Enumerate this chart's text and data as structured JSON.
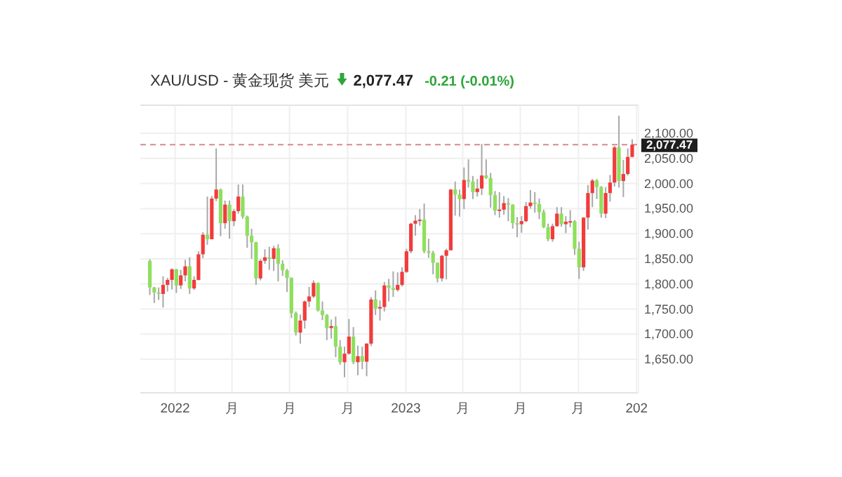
{
  "chart_data": {
    "type": "candlestick",
    "title": "XAU/USD - 黄金现货 美元",
    "annotations": [
      "2,077.47",
      "-0.21 (-0.01%)"
    ],
    "x": [
      "2021-11-22",
      "2021-11-29",
      "2021-12-06",
      "2021-12-13",
      "2021-12-20",
      "2021-12-27",
      "2022-01-03",
      "2022-01-10",
      "2022-01-17",
      "2022-01-24",
      "2022-01-31",
      "2022-02-07",
      "2022-02-14",
      "2022-02-21",
      "2022-02-28",
      "2022-03-07",
      "2022-03-14",
      "2022-03-21",
      "2022-03-28",
      "2022-04-04",
      "2022-04-11",
      "2022-04-18",
      "2022-04-25",
      "2022-05-02",
      "2022-05-09",
      "2022-05-16",
      "2022-05-23",
      "2022-05-30",
      "2022-06-06",
      "2022-06-13",
      "2022-06-20",
      "2022-06-27",
      "2022-07-04",
      "2022-07-11",
      "2022-07-18",
      "2022-07-25",
      "2022-08-01",
      "2022-08-08",
      "2022-08-15",
      "2022-08-22",
      "2022-08-29",
      "2022-09-05",
      "2022-09-12",
      "2022-09-19",
      "2022-09-26",
      "2022-10-03",
      "2022-10-10",
      "2022-10-17",
      "2022-10-24",
      "2022-10-31",
      "2022-11-07",
      "2022-11-14",
      "2022-11-21",
      "2022-11-28",
      "2022-12-05",
      "2022-12-12",
      "2022-12-19",
      "2022-12-26",
      "2023-01-02",
      "2023-01-09",
      "2023-01-16",
      "2023-01-23",
      "2023-01-30",
      "2023-02-06",
      "2023-02-13",
      "2023-02-20",
      "2023-02-27",
      "2023-03-06",
      "2023-03-13",
      "2023-03-20",
      "2023-03-27",
      "2023-04-03",
      "2023-04-10",
      "2023-04-17",
      "2023-04-24",
      "2023-05-01",
      "2023-05-08",
      "2023-05-15",
      "2023-05-22",
      "2023-05-29",
      "2023-06-05",
      "2023-06-12",
      "2023-06-19",
      "2023-06-26",
      "2023-07-03",
      "2023-07-10",
      "2023-07-17",
      "2023-07-24",
      "2023-07-31",
      "2023-08-07",
      "2023-08-14",
      "2023-08-21",
      "2023-08-28",
      "2023-09-04",
      "2023-09-11",
      "2023-09-18",
      "2023-09-25",
      "2023-10-02",
      "2023-10-09",
      "2023-10-16",
      "2023-10-23",
      "2023-10-30",
      "2023-11-06",
      "2023-11-13",
      "2023-11-20",
      "2023-11-27",
      "2023-12-04",
      "2023-12-11",
      "2023-12-18",
      "2023-12-25"
    ],
    "ohlc": [
      [
        1846,
        1849,
        1778,
        1793
      ],
      [
        1793,
        1794,
        1762,
        1783
      ],
      [
        1783,
        1793,
        1768,
        1780
      ],
      [
        1780,
        1815,
        1753,
        1798
      ],
      [
        1798,
        1812,
        1785,
        1808
      ],
      [
        1808,
        1831,
        1789,
        1829
      ],
      [
        1829,
        1830,
        1782,
        1797
      ],
      [
        1797,
        1828,
        1790,
        1817
      ],
      [
        1817,
        1848,
        1805,
        1835
      ],
      [
        1835,
        1853,
        1780,
        1791
      ],
      [
        1791,
        1815,
        1788,
        1808
      ],
      [
        1808,
        1865,
        1807,
        1859
      ],
      [
        1859,
        1903,
        1851,
        1898
      ],
      [
        1898,
        1974,
        1878,
        1889
      ],
      [
        1889,
        1975,
        1889,
        1970
      ],
      [
        1970,
        2070,
        1965,
        1988
      ],
      [
        1988,
        1990,
        1895,
        1921
      ],
      [
        1921,
        1966,
        1910,
        1958
      ],
      [
        1958,
        1966,
        1890,
        1925
      ],
      [
        1925,
        1949,
        1915,
        1945
      ],
      [
        1945,
        1998,
        1940,
        1974
      ],
      [
        1974,
        1998,
        1930,
        1934
      ],
      [
        1934,
        1936,
        1872,
        1896
      ],
      [
        1896,
        1910,
        1850,
        1883
      ],
      [
        1883,
        1884,
        1798,
        1811
      ],
      [
        1811,
        1849,
        1807,
        1846
      ],
      [
        1846,
        1869,
        1840,
        1853
      ],
      [
        1853,
        1874,
        1828,
        1850
      ],
      [
        1850,
        1876,
        1826,
        1871
      ],
      [
        1871,
        1879,
        1805,
        1840
      ],
      [
        1840,
        1847,
        1816,
        1827
      ],
      [
        1827,
        1830,
        1784,
        1812
      ],
      [
        1812,
        1813,
        1732,
        1742
      ],
      [
        1742,
        1745,
        1697,
        1703
      ],
      [
        1703,
        1739,
        1681,
        1727
      ],
      [
        1727,
        1767,
        1711,
        1765
      ],
      [
        1765,
        1794,
        1754,
        1775
      ],
      [
        1775,
        1807,
        1772,
        1802
      ],
      [
        1802,
        1803,
        1745,
        1747
      ],
      [
        1747,
        1765,
        1728,
        1738
      ],
      [
        1738,
        1740,
        1688,
        1712
      ],
      [
        1712,
        1729,
        1691,
        1716
      ],
      [
        1716,
        1735,
        1654,
        1675
      ],
      [
        1675,
        1688,
        1639,
        1644
      ],
      [
        1644,
        1675,
        1614,
        1661
      ],
      [
        1661,
        1730,
        1659,
        1695
      ],
      [
        1695,
        1714,
        1640,
        1644
      ],
      [
        1644,
        1677,
        1618,
        1656
      ],
      [
        1656,
        1675,
        1630,
        1645
      ],
      [
        1645,
        1682,
        1616,
        1681
      ],
      [
        1681,
        1774,
        1676,
        1769
      ],
      [
        1769,
        1787,
        1738,
        1751
      ],
      [
        1751,
        1767,
        1727,
        1754
      ],
      [
        1754,
        1804,
        1745,
        1797
      ],
      [
        1797,
        1810,
        1765,
        1792
      ],
      [
        1792,
        1825,
        1774,
        1788
      ],
      [
        1788,
        1823,
        1785,
        1798
      ],
      [
        1798,
        1833,
        1795,
        1824
      ],
      [
        1824,
        1870,
        1822,
        1865
      ],
      [
        1865,
        1922,
        1861,
        1920
      ],
      [
        1920,
        1937,
        1896,
        1926
      ],
      [
        1926,
        1949,
        1916,
        1928
      ],
      [
        1928,
        1960,
        1861,
        1865
      ],
      [
        1865,
        1890,
        1852,
        1862
      ],
      [
        1862,
        1866,
        1819,
        1842
      ],
      [
        1842,
        1843,
        1803,
        1811
      ],
      [
        1811,
        1858,
        1805,
        1856
      ],
      [
        1856,
        1870,
        1809,
        1867
      ],
      [
        1867,
        1989,
        1867,
        1988
      ],
      [
        1988,
        2004,
        1936,
        1978
      ],
      [
        1978,
        1988,
        1934,
        1969
      ],
      [
        1969,
        2032,
        1949,
        2007
      ],
      [
        2007,
        2048,
        1992,
        2004
      ],
      [
        2004,
        2015,
        1969,
        1983
      ],
      [
        1983,
        2009,
        1974,
        1990
      ],
      [
        1990,
        2079,
        1977,
        2016
      ],
      [
        2016,
        2048,
        2009,
        2011
      ],
      [
        2011,
        2021,
        1952,
        1977
      ],
      [
        1977,
        1985,
        1937,
        1946
      ],
      [
        1946,
        1983,
        1932,
        1948
      ],
      [
        1948,
        1975,
        1938,
        1961
      ],
      [
        1961,
        1971,
        1925,
        1958
      ],
      [
        1958,
        1959,
        1910,
        1921
      ],
      [
        1921,
        1933,
        1893,
        1919
      ],
      [
        1919,
        1935,
        1902,
        1925
      ],
      [
        1925,
        1963,
        1923,
        1955
      ],
      [
        1955,
        1987,
        1950,
        1962
      ],
      [
        1962,
        1983,
        1942,
        1959
      ],
      [
        1959,
        1970,
        1929,
        1943
      ],
      [
        1943,
        1948,
        1911,
        1913
      ],
      [
        1913,
        1920,
        1885,
        1889
      ],
      [
        1889,
        1920,
        1884,
        1915
      ],
      [
        1915,
        1953,
        1914,
        1940
      ],
      [
        1940,
        1953,
        1914,
        1919
      ],
      [
        1919,
        1935,
        1901,
        1924
      ],
      [
        1924,
        1947,
        1913,
        1925
      ],
      [
        1925,
        1927,
        1858,
        1870
      ],
      [
        1870,
        1884,
        1810,
        1833
      ],
      [
        1833,
        1933,
        1826,
        1932
      ],
      [
        1932,
        1997,
        1908,
        1981
      ],
      [
        1981,
        2009,
        1953,
        2006
      ],
      [
        2006,
        2009,
        1969,
        1993
      ],
      [
        1993,
        1995,
        1932,
        1940
      ],
      [
        1940,
        1993,
        1931,
        1981
      ],
      [
        1981,
        2017,
        1964,
        2002
      ],
      [
        2002,
        2075,
        1994,
        2072
      ],
      [
        2072,
        2135,
        1992,
        2005
      ],
      [
        2005,
        2047,
        1973,
        2019
      ],
      [
        2019,
        2070,
        2016,
        2053
      ],
      [
        2053,
        2088,
        2052,
        2077.47
      ]
    ],
    "colors": [
      "#8ee05c",
      "#8ee05c",
      "#8ee05c",
      "#f23b3b",
      "#f23b3b",
      "#f23b3b",
      "#8ee05c",
      "#f23b3b",
      "#f23b3b",
      "#8ee05c",
      "#f23b3b",
      "#f23b3b",
      "#f23b3b",
      "#8ee05c",
      "#f23b3b",
      "#f23b3b",
      "#8ee05c",
      "#f23b3b",
      "#8ee05c",
      "#f23b3b",
      "#f23b3b",
      "#8ee05c",
      "#8ee05c",
      "#8ee05c",
      "#8ee05c",
      "#f23b3b",
      "#f23b3b",
      "#8ee05c",
      "#f23b3b",
      "#8ee05c",
      "#8ee05c",
      "#8ee05c",
      "#8ee05c",
      "#8ee05c",
      "#f23b3b",
      "#f23b3b",
      "#f23b3b",
      "#f23b3b",
      "#8ee05c",
      "#8ee05c",
      "#8ee05c",
      "#f23b3b",
      "#8ee05c",
      "#8ee05c",
      "#f23b3b",
      "#f23b3b",
      "#8ee05c",
      "#f23b3b",
      "#8ee05c",
      "#f23b3b",
      "#f23b3b",
      "#8ee05c",
      "#f23b3b",
      "#f23b3b",
      "#8ee05c",
      "#8ee05c",
      "#f23b3b",
      "#f23b3b",
      "#f23b3b",
      "#f23b3b",
      "#f23b3b",
      "#f23b3b",
      "#8ee05c",
      "#8ee05c",
      "#8ee05c",
      "#8ee05c",
      "#f23b3b",
      "#f23b3b",
      "#f23b3b",
      "#8ee05c",
      "#8ee05c",
      "#f23b3b",
      "#8ee05c",
      "#8ee05c",
      "#f23b3b",
      "#f23b3b",
      "#8ee05c",
      "#8ee05c",
      "#8ee05c",
      "#f23b3b",
      "#f23b3b",
      "#8ee05c",
      "#8ee05c",
      "#8ee05c",
      "#f23b3b",
      "#f23b3b",
      "#f23b3b",
      "#8ee05c",
      "#8ee05c",
      "#8ee05c",
      "#8ee05c",
      "#f23b3b",
      "#f23b3b",
      "#8ee05c",
      "#f23b3b",
      "#f23b3b",
      "#8ee05c",
      "#8ee05c",
      "#f23b3b",
      "#f23b3b",
      "#f23b3b",
      "#8ee05c",
      "#8ee05c",
      "#f23b3b",
      "#f23b3b",
      "#f23b3b",
      "#8ee05c",
      "#f23b3b",
      "#f23b3b",
      "#f23b3b"
    ],
    "xlim": [
      "2021-11-07",
      "2024-01-04"
    ],
    "xticks": [
      {
        "value": "2022-01-01",
        "label": "2022"
      },
      {
        "value": "2022-04-01",
        "label": "月"
      },
      {
        "value": "2022-07-01",
        "label": "月"
      },
      {
        "value": "2022-10-01",
        "label": "月"
      },
      {
        "value": "2023-01-01",
        "label": "2023"
      },
      {
        "value": "2023-04-01",
        "label": "月"
      },
      {
        "value": "2023-07-01",
        "label": "月"
      },
      {
        "value": "2023-10-01",
        "label": "月"
      },
      {
        "value": "2024-01-01",
        "label": "202"
      }
    ],
    "ylim": [
      1583,
      2156
    ],
    "yticks": [
      {
        "value": 1650,
        "label": "1,650.00"
      },
      {
        "value": 1700,
        "label": "1,700.00"
      },
      {
        "value": 1750,
        "label": "1,750.00"
      },
      {
        "value": 1800,
        "label": "1,800.00"
      },
      {
        "value": 1850,
        "label": "1,850.00"
      },
      {
        "value": 1900,
        "label": "1,900.00"
      },
      {
        "value": 1950,
        "label": "1,950.00"
      },
      {
        "value": 2000,
        "label": "2,000.00"
      },
      {
        "value": 2050,
        "label": "2,050.00"
      },
      {
        "value": 2100,
        "label": "2,100.00"
      }
    ],
    "ref_lines": [
      {
        "axis": "y",
        "value": 2077.47,
        "label": "2,077.47",
        "color": "#d98a8a",
        "line_style": "dashed"
      }
    ],
    "grid": true
  }
}
